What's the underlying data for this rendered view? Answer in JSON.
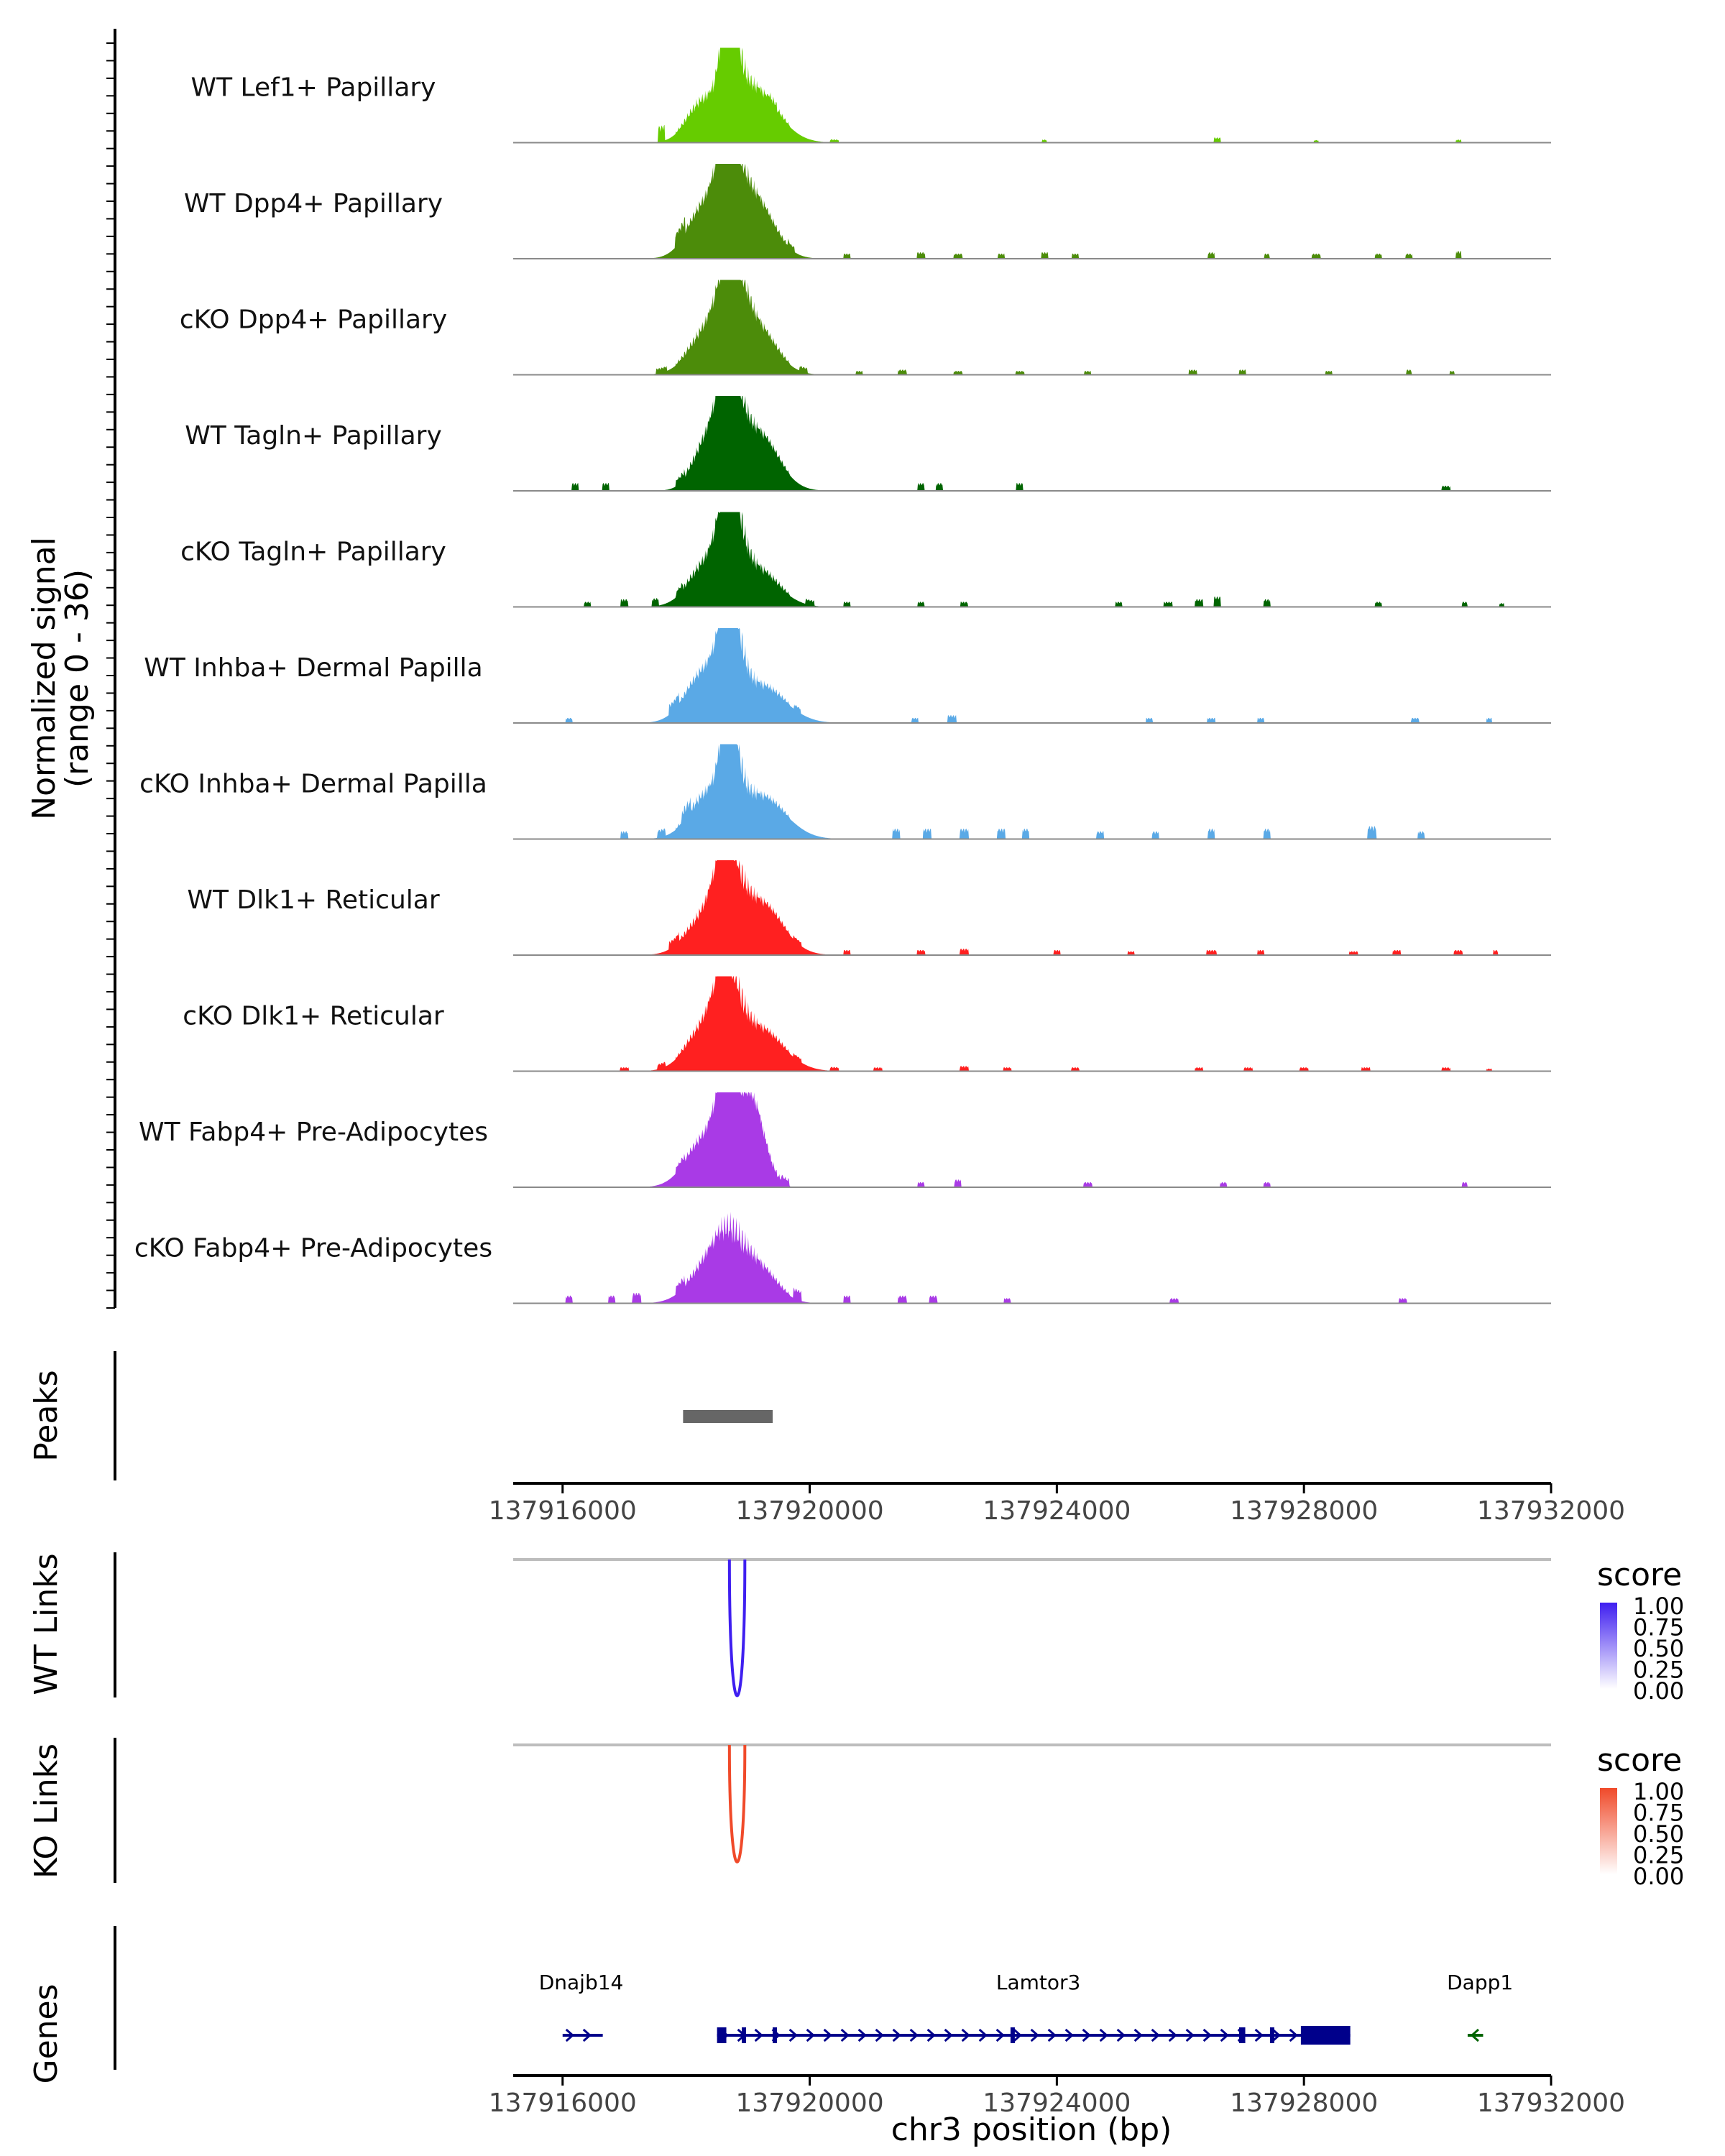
{
  "chart_data": {
    "type": "area",
    "title": "",
    "region": "chr3",
    "x_range": [
      137915200,
      137932000
    ],
    "xlim": [
      137915200,
      137932000
    ],
    "x_ticks": [
      137916000,
      137920000,
      137924000,
      137928000,
      137932000
    ],
    "x_tick_labels": [
      "137916000",
      "137920000",
      "137924000",
      "137928000",
      "137932000"
    ],
    "xlabel": "chr3 position (bp)",
    "coverage": {
      "ylabel_line1": "Normalized signal",
      "ylabel_line2": "(range 0 - 36)",
      "ylim": [
        0,
        36
      ],
      "tracks": [
        {
          "name": "WT Lef1+ Papillary",
          "color": "#66cc00",
          "peaks": [
            [
              137918700,
              36,
              0.5
            ],
            [
              137918250,
              12,
              1.0
            ],
            [
              137919100,
              18,
              1.5
            ]
          ],
          "islands": [
            [
              137917600,
              6,
              0.4
            ],
            [
              137919400,
              1.5,
              0.5
            ],
            [
              137920400,
              1.2,
              0.5
            ],
            [
              137923800,
              1.2,
              0.3
            ],
            [
              137926600,
              2,
              0.4
            ],
            [
              137928200,
              1,
              0.3
            ],
            [
              137930500,
              1.2,
              0.3
            ]
          ]
        },
        {
          "name": "WT Dpp4+ Papillary",
          "color": "#4c8c0a",
          "peaks": [
            [
              137918680,
              32,
              0.6
            ],
            [
              137918300,
              17,
              1.1
            ],
            [
              137919050,
              22,
              1.3
            ]
          ],
          "islands": [
            [
              137917900,
              5,
              0.6
            ],
            [
              137919700,
              2,
              0.4
            ],
            [
              137920600,
              2,
              0.4
            ],
            [
              137921800,
              2.5,
              0.5
            ],
            [
              137922400,
              2,
              0.5
            ],
            [
              137923100,
              2,
              0.4
            ],
            [
              137923800,
              2.5,
              0.4
            ],
            [
              137924300,
              2,
              0.4
            ],
            [
              137926500,
              2.5,
              0.4
            ],
            [
              137927400,
              2,
              0.3
            ],
            [
              137928200,
              2,
              0.5
            ],
            [
              137929200,
              2,
              0.4
            ],
            [
              137929700,
              2,
              0.4
            ],
            [
              137930500,
              3,
              0.3
            ]
          ]
        },
        {
          "name": "cKO Dpp4+ Papillary",
          "color": "#4c8c0a",
          "peaks": [
            [
              137918720,
              28,
              0.7
            ],
            [
              137918350,
              14,
              1.2
            ],
            [
              137919100,
              17,
              1.3
            ]
          ],
          "islands": [
            [
              137917600,
              2,
              0.6
            ],
            [
              137919900,
              2,
              0.5
            ],
            [
              137920800,
              1.5,
              0.4
            ],
            [
              137921500,
              2,
              0.5
            ],
            [
              137922400,
              1.5,
              0.5
            ],
            [
              137923400,
              1.5,
              0.5
            ],
            [
              137924500,
              1.5,
              0.4
            ],
            [
              137926200,
              2,
              0.5
            ],
            [
              137927000,
              2,
              0.4
            ],
            [
              137928400,
              1.5,
              0.4
            ],
            [
              137929700,
              2,
              0.3
            ],
            [
              137930400,
              1.5,
              0.3
            ]
          ]
        },
        {
          "name": "WT Tagln+ Papillary",
          "color": "#006400",
          "peaks": [
            [
              137918700,
              34,
              0.6
            ],
            [
              137918400,
              18,
              1.0
            ],
            [
              137919150,
              20,
              1.3
            ]
          ],
          "islands": [
            [
              137916200,
              3,
              0.4
            ],
            [
              137916700,
              3,
              0.4
            ],
            [
              137917900,
              2,
              0.5
            ],
            [
              137921800,
              3,
              0.4
            ],
            [
              137922100,
              3,
              0.4
            ],
            [
              137923400,
              3,
              0.4
            ],
            [
              137930300,
              2,
              0.5
            ]
          ]
        },
        {
          "name": "cKO Tagln+ Papillary",
          "color": "#006400",
          "peaks": [
            [
              137918700,
              34,
              0.6
            ],
            [
              137918350,
              14,
              1.2
            ],
            [
              137919150,
              12,
              1.4
            ]
          ],
          "islands": [
            [
              137916400,
              2,
              0.4
            ],
            [
              137917000,
              3,
              0.4
            ],
            [
              137917500,
              3,
              0.4
            ],
            [
              137917900,
              2,
              0.4
            ],
            [
              137920000,
              2,
              0.5
            ],
            [
              137920600,
              2,
              0.4
            ],
            [
              137921800,
              2,
              0.4
            ],
            [
              137922500,
              2,
              0.4
            ],
            [
              137925000,
              2,
              0.4
            ],
            [
              137925800,
              2,
              0.5
            ],
            [
              137926300,
              3,
              0.5
            ],
            [
              137926600,
              4,
              0.4
            ],
            [
              137927400,
              3,
              0.4
            ],
            [
              137929200,
              2,
              0.4
            ],
            [
              137930600,
              2,
              0.3
            ],
            [
              137931200,
              1.5,
              0.3
            ]
          ]
        },
        {
          "name": "WT Inhba+ Dermal Papilla",
          "color": "#5aa9e6",
          "peaks": [
            [
              137918700,
              34,
              0.6
            ],
            [
              137918300,
              17,
              1.2
            ],
            [
              137919250,
              12,
              1.5
            ]
          ],
          "islands": [
            [
              137916100,
              2,
              0.4
            ],
            [
              137917800,
              4,
              0.6
            ],
            [
              137919800,
              2,
              0.4
            ],
            [
              137921700,
              2,
              0.4
            ],
            [
              137922300,
              3,
              0.5
            ],
            [
              137925500,
              2,
              0.4
            ],
            [
              137926500,
              2,
              0.5
            ],
            [
              137927300,
              2,
              0.4
            ],
            [
              137929800,
              2,
              0.5
            ],
            [
              137931000,
              2,
              0.3
            ]
          ]
        },
        {
          "name": "cKO Inhba+ Dermal Papilla",
          "color": "#5aa9e6",
          "peaks": [
            [
              137918700,
              34,
              0.5
            ],
            [
              137918350,
              14,
              1.2
            ],
            [
              137919250,
              14,
              1.5
            ]
          ],
          "islands": [
            [
              137917000,
              3,
              0.4
            ],
            [
              137917600,
              3,
              0.5
            ],
            [
              137918000,
              4,
              0.5
            ],
            [
              137921400,
              4,
              0.4
            ],
            [
              137921900,
              4,
              0.5
            ],
            [
              137922500,
              4,
              0.5
            ],
            [
              137923100,
              4,
              0.5
            ],
            [
              137923500,
              4,
              0.4
            ],
            [
              137924700,
              3,
              0.4
            ],
            [
              137925600,
              3,
              0.4
            ],
            [
              137926500,
              4,
              0.4
            ],
            [
              137927400,
              4,
              0.4
            ],
            [
              137929100,
              5,
              0.5
            ],
            [
              137929900,
              3,
              0.4
            ]
          ]
        },
        {
          "name": "WT Dlk1+ Reticular",
          "color": "#ff2020",
          "peaks": [
            [
              137918650,
              28,
              0.7
            ],
            [
              137918300,
              12,
              1.2
            ],
            [
              137919200,
              18,
              1.4
            ]
          ],
          "islands": [
            [
              137917800,
              3,
              0.6
            ],
            [
              137919800,
              1.5,
              0.5
            ],
            [
              137920600,
              2,
              0.4
            ],
            [
              137921800,
              2,
              0.5
            ],
            [
              137922500,
              2.5,
              0.5
            ],
            [
              137924000,
              2,
              0.4
            ],
            [
              137925200,
              1.5,
              0.4
            ],
            [
              137926500,
              2,
              0.6
            ],
            [
              137927300,
              2,
              0.4
            ],
            [
              137928800,
              1.5,
              0.5
            ],
            [
              137929500,
              2,
              0.5
            ],
            [
              137930500,
              2,
              0.5
            ],
            [
              137931100,
              2,
              0.3
            ]
          ]
        },
        {
          "name": "cKO Dlk1+ Reticular",
          "color": "#ff2020",
          "peaks": [
            [
              137918650,
              26,
              0.7
            ],
            [
              137918300,
              14,
              1.2
            ],
            [
              137919200,
              14,
              1.5
            ]
          ],
          "islands": [
            [
              137917000,
              1.5,
              0.5
            ],
            [
              137917600,
              2,
              0.5
            ],
            [
              137919800,
              1.5,
              0.5
            ],
            [
              137920400,
              1.5,
              0.5
            ],
            [
              137921100,
              1.5,
              0.5
            ],
            [
              137922500,
              2,
              0.5
            ],
            [
              137923200,
              1.5,
              0.5
            ],
            [
              137924300,
              1.5,
              0.5
            ],
            [
              137926300,
              1.5,
              0.5
            ],
            [
              137927100,
              1.5,
              0.5
            ],
            [
              137928000,
              1.5,
              0.5
            ],
            [
              137929000,
              1.5,
              0.5
            ],
            [
              137930300,
              1.5,
              0.5
            ],
            [
              137931000,
              1,
              0.3
            ]
          ]
        },
        {
          "name": "WT Fabp4+ Pre-Adipocytes",
          "color": "#a93ae6",
          "peaks": [
            [
              137918650,
              30,
              0.6
            ],
            [
              137918300,
              16,
              1.2
            ],
            [
              137919050,
              30,
              0.8
            ]
          ],
          "islands": [
            [
              137917900,
              2,
              0.5
            ],
            [
              137919600,
              2,
              0.5
            ],
            [
              137921800,
              2,
              0.4
            ],
            [
              137922400,
              3,
              0.4
            ],
            [
              137924500,
              2,
              0.5
            ],
            [
              137926700,
              2,
              0.4
            ],
            [
              137927400,
              2,
              0.4
            ],
            [
              137930600,
              2,
              0.3
            ]
          ]
        },
        {
          "name": "cKO Fabp4+ Pre-Adipocytes",
          "color": "#a93ae6",
          "peaks": [
            [
              137918650,
              15,
              0.9
            ],
            [
              137918300,
              10,
              1.2
            ],
            [
              137919150,
              12,
              1.2
            ]
          ],
          "islands": [
            [
              137916100,
              3,
              0.4
            ],
            [
              137916800,
              3,
              0.4
            ],
            [
              137917200,
              4,
              0.5
            ],
            [
              137917900,
              3,
              0.5
            ],
            [
              137919800,
              4,
              0.5
            ],
            [
              137920600,
              3,
              0.4
            ],
            [
              137921500,
              3,
              0.5
            ],
            [
              137922000,
              3,
              0.5
            ],
            [
              137923200,
              2,
              0.4
            ],
            [
              137925900,
              2,
              0.5
            ],
            [
              137929600,
              2,
              0.5
            ]
          ]
        }
      ]
    },
    "peaks_track": {
      "label": "Peaks",
      "regions": [
        [
          137917950,
          137919400
        ]
      ]
    },
    "links": [
      {
        "label": "WT Links",
        "legend_title": "score",
        "legend_ticks": [
          "1.00",
          "0.75",
          "0.50",
          "0.25",
          "0.00"
        ],
        "color": "#3f1ff0",
        "score": 1.0,
        "start": 137918700,
        "end": 137918950
      },
      {
        "label": "KO Links",
        "legend_title": "score",
        "legend_ticks": [
          "1.00",
          "0.75",
          "0.50",
          "0.25",
          "0.00"
        ],
        "color": "#f04a2a",
        "score": 0.85,
        "start": 137918700,
        "end": 137918950
      }
    ],
    "genes": {
      "label": "Genes",
      "items": [
        {
          "name": "Dnajb14",
          "start": 137916000,
          "end": 137916650,
          "strand": "+",
          "color": "#00008b",
          "label_pos": 137916300
        },
        {
          "name": "Lamtor3",
          "start": 137918500,
          "end": 137928750,
          "strand": "+",
          "color": "#00008b",
          "label_pos": 137923700,
          "exons": [
            [
              137918500,
              137918650
            ],
            [
              137918900,
              137918950
            ],
            [
              137919400,
              137919450
            ],
            [
              137923250,
              137923310
            ],
            [
              137926950,
              137927050
            ],
            [
              137927450,
              137927500
            ],
            [
              137927950,
              137928750
            ]
          ]
        },
        {
          "name": "Dapp1",
          "start": 137930650,
          "end": 137930900,
          "strand": "-",
          "color": "#006400",
          "label_pos": 137930850
        }
      ]
    }
  }
}
